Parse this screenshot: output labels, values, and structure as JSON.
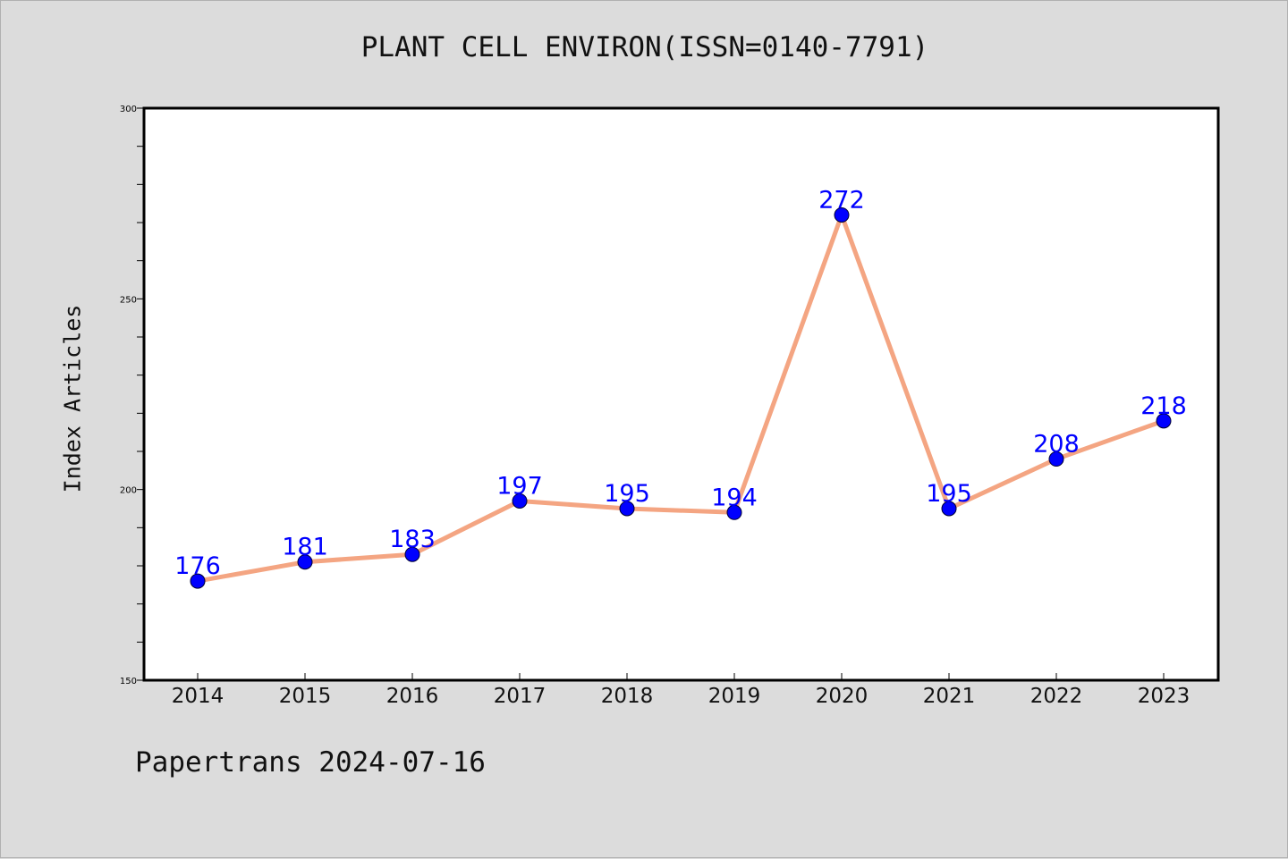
{
  "chart_data": {
    "type": "line",
    "title": "PLANT CELL ENVIRON(ISSN=0140-7791)",
    "xlabel": "",
    "ylabel": "Index Articles",
    "categories": [
      "2014",
      "2015",
      "2016",
      "2017",
      "2018",
      "2019",
      "2020",
      "2021",
      "2022",
      "2023"
    ],
    "series": [
      {
        "values": [
          176,
          181,
          183,
          197,
          195,
          194,
          272,
          195,
          208,
          218
        ]
      }
    ],
    "ylim": [
      150,
      300
    ],
    "yticks": [
      150,
      200,
      250,
      300
    ],
    "grid": false,
    "legend": "none",
    "line_color": "#f4a582",
    "marker_color": "#0000ff",
    "label_color": "#0000ff",
    "background": "#dcdcdc",
    "plot_background": "#ffffff"
  },
  "footer": {
    "text": "Papertrans 2024-07-16"
  }
}
